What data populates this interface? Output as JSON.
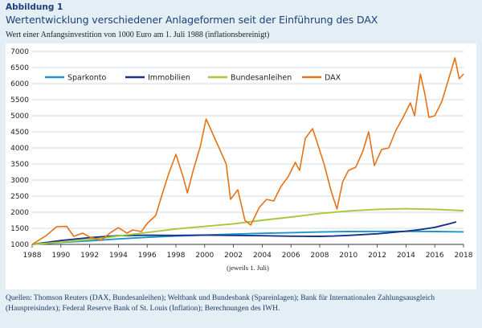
{
  "figure": {
    "label": "Abbildung 1",
    "title": "Wertentwicklung verschiedener Anlageformen seit der Einführung des DAX",
    "subtitle": "Wert einer Anfangsinvestition von 1000 Euro am 1. Juli 1988 (inflationsbereinigt)",
    "sources": "Quellen: Thomson Reuters (DAX, Bundesanleihen); Weltbank und Bundesbank (Spareinlagen); Bank für Internationalen Zahlungsausgleich (Hauspreisindex); Federal Reserve Bank of St. Louis (Inflation); Berechnungen des IWH."
  },
  "chart_data": {
    "type": "line",
    "x_note": "(jeweils 1. Juli)",
    "xlim": [
      1988,
      2018
    ],
    "ylim": [
      1000,
      7000
    ],
    "x_ticks": [
      "1988",
      "1990",
      "1992",
      "1994",
      "1996",
      "1998",
      "2000",
      "2002",
      "2004",
      "2006",
      "2008",
      "2010",
      "2012",
      "2014",
      "2016",
      "2018"
    ],
    "y_ticks": [
      "1000",
      "1500",
      "2000",
      "2500",
      "3000",
      "3500",
      "4000",
      "4500",
      "5000",
      "5500",
      "6000",
      "6500",
      "7000"
    ],
    "grid": true,
    "legend_position": "top",
    "series": [
      {
        "name": "Sparkonto",
        "color": "#1a96c8",
        "x": [
          1988,
          1990,
          1992,
          1994,
          1996,
          1998,
          2000,
          2002,
          2004,
          2006,
          2008,
          2010,
          2012,
          2014,
          2016,
          2018
        ],
        "y": [
          1000,
          1060,
          1110,
          1170,
          1220,
          1260,
          1290,
          1320,
          1345,
          1365,
          1385,
          1400,
          1405,
          1405,
          1400,
          1390
        ]
      },
      {
        "name": "Immobilien",
        "color": "#17328a",
        "x": [
          1988,
          1990,
          1992,
          1994,
          1996,
          1998,
          2000,
          2002,
          2004,
          2006,
          2008,
          2009,
          2010,
          2012,
          2014,
          2015,
          2016,
          2017,
          2017.5
        ],
        "y": [
          1000,
          1120,
          1210,
          1270,
          1285,
          1280,
          1290,
          1280,
          1270,
          1255,
          1250,
          1260,
          1280,
          1330,
          1410,
          1460,
          1530,
          1640,
          1700
        ]
      },
      {
        "name": "Bundesanleihen",
        "color": "#a6c83a",
        "x": [
          1988,
          1990,
          1992,
          1994,
          1996,
          1998,
          2000,
          2002,
          2004,
          2006,
          2008,
          2010,
          2012,
          2014,
          2016,
          2018
        ],
        "y": [
          1000,
          1070,
          1150,
          1260,
          1370,
          1480,
          1560,
          1640,
          1750,
          1850,
          1960,
          2040,
          2090,
          2110,
          2090,
          2050
        ]
      },
      {
        "name": "DAX",
        "color": "#e57217",
        "x": [
          1988,
          1989,
          1989.7,
          1990.4,
          1990.9,
          1991.5,
          1992,
          1992.8,
          1993.5,
          1994,
          1994.6,
          1995,
          1995.6,
          1996,
          1996.6,
          1997,
          1997.5,
          1998,
          1998.5,
          1998.8,
          1999.2,
          1999.7,
          2000.1,
          2000.6,
          2001,
          2001.5,
          2001.8,
          2002.3,
          2002.8,
          2003.2,
          2003.8,
          2004.3,
          2004.8,
          2005.3,
          2005.8,
          2006.3,
          2006.6,
          2007,
          2007.5,
          2007.8,
          2008.3,
          2008.8,
          2009.2,
          2009.6,
          2010,
          2010.5,
          2011,
          2011.4,
          2011.8,
          2012.3,
          2012.8,
          2013.3,
          2013.8,
          2014.3,
          2014.6,
          2015,
          2015.3,
          2015.6,
          2016,
          2016.5,
          2017,
          2017.4,
          2017.7,
          2018
        ],
        "y": [
          1000,
          1280,
          1550,
          1560,
          1250,
          1350,
          1230,
          1130,
          1380,
          1520,
          1350,
          1450,
          1400,
          1650,
          1900,
          2500,
          3200,
          3800,
          3100,
          2600,
          3300,
          4050,
          4900,
          4400,
          4000,
          3500,
          2400,
          2700,
          1750,
          1600,
          2150,
          2400,
          2350,
          2800,
          3100,
          3550,
          3300,
          4300,
          4600,
          4200,
          3500,
          2650,
          2100,
          2950,
          3300,
          3400,
          3900,
          4500,
          3450,
          3950,
          4000,
          4550,
          4950,
          5400,
          5000,
          6300,
          5700,
          4950,
          5000,
          5450,
          6200,
          6800,
          6150,
          6300
        ]
      }
    ]
  }
}
